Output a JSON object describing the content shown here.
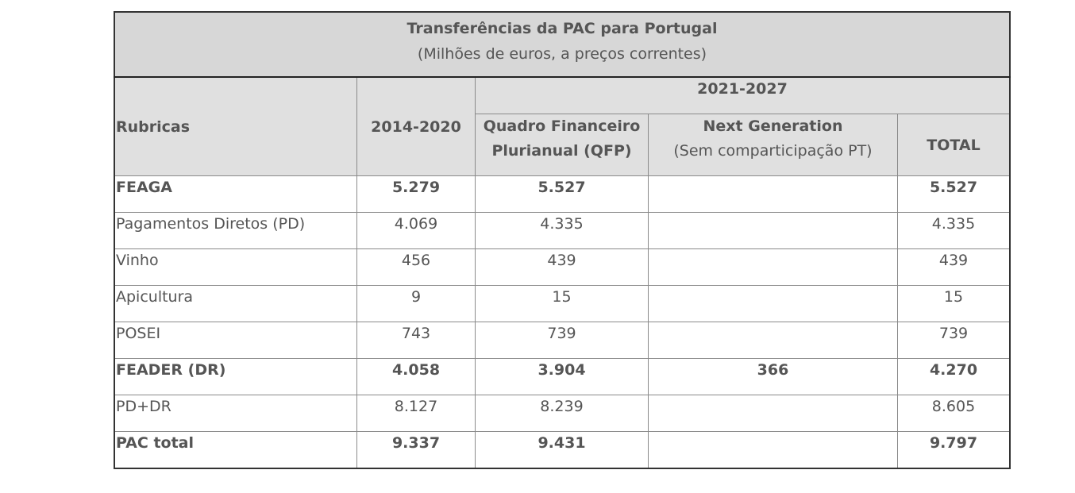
{
  "title": "Transferências da PAC para Portugal",
  "subtitle": "(Milhões de euros, a preços correntes)",
  "headers": {
    "rubricas": "Rubricas",
    "p1": "2014-2020",
    "p2": "2021-2027",
    "qfp1": "Quadro Financeiro",
    "qfp2": "Plurianual (QFP)",
    "ng1": "Next Generation",
    "ng2": "(Sem comparticipação PT)",
    "total": "TOTAL"
  },
  "rows": [
    {
      "name": "FEAGA",
      "p1": "5.279",
      "qfp": "5.527",
      "ng": "",
      "total": "5.527",
      "bold": true
    },
    {
      "name": "Pagamentos Diretos (PD)",
      "p1": "4.069",
      "qfp": "4.335",
      "ng": "",
      "total": "4.335"
    },
    {
      "name": "Vinho",
      "p1": "456",
      "qfp": "439",
      "ng": "",
      "total": "439"
    },
    {
      "name": "Apicultura",
      "p1": "9",
      "qfp": "15",
      "ng": "",
      "total": "15"
    },
    {
      "name": "POSEI",
      "p1": "743",
      "qfp": "739",
      "ng": "",
      "total": "739"
    },
    {
      "name": "FEADER (DR)",
      "p1": "4.058",
      "qfp": "3.904",
      "ng": "366",
      "total": "4.270",
      "bold": true
    },
    {
      "name": "PD+DR",
      "p1": "8.127",
      "qfp": "8.239",
      "ng": "",
      "total": "8.605"
    },
    {
      "name": "PAC total",
      "p1": "9.337",
      "qfp": "9.431",
      "ng": "",
      "total": "9.797",
      "bold": true
    }
  ]
}
